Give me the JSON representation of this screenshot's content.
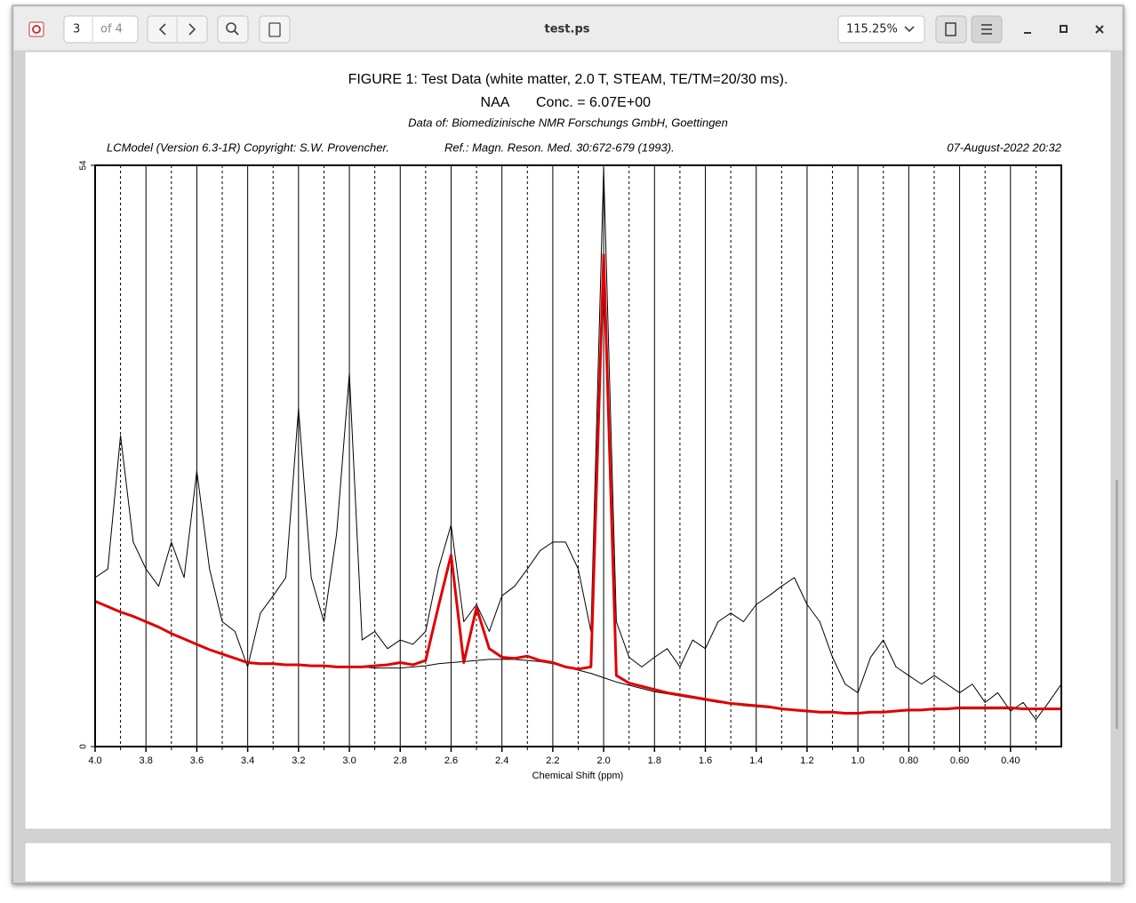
{
  "viewer": {
    "page_number": "3",
    "page_count": "of 4",
    "file_name": "test.ps",
    "zoom": "115.25%"
  },
  "chart_data": {
    "type": "line",
    "title": "FIGURE 1:  Test Data (white matter, 2.0 T, STEAM, TE/TM=20/30 ms).",
    "metabolite": "NAA",
    "concentration": "Conc. = 6.07E+00",
    "data_source": "Data of: Biomedizinische NMR Forschungs GmbH, Goettingen",
    "program": "LCModel (Version 6.3-1R) Copyright: S.W. Provencher.",
    "reference": "Ref.: Magn. Reson. Med. 30:672-679 (1993).",
    "date": "07-August-2022  20:32",
    "xlabel": "Chemical Shift (ppm)",
    "xlim": [
      4.0,
      0.2
    ],
    "ylim": [
      0,
      54
    ],
    "xticks": [
      {
        "value": 4.0,
        "label": "4.0"
      },
      3.8,
      3.6,
      3.4,
      3.2,
      {
        "value": 3.0,
        "label": "3.0"
      },
      2.8,
      2.6,
      2.4,
      2.2,
      {
        "value": 2.0,
        "label": "2.0"
      },
      1.8,
      1.6,
      1.4,
      1.2,
      {
        "value": 1.0,
        "label": "1.0"
      },
      {
        "value": 0.8,
        "label": "0.80"
      },
      {
        "value": 0.6,
        "label": "0.60"
      },
      {
        "value": 0.4,
        "label": "0.40"
      }
    ],
    "minor_xticks": [
      3.9,
      3.7,
      3.5,
      3.3,
      3.1,
      2.9,
      2.7,
      2.5,
      2.3,
      2.1,
      1.9,
      1.7,
      1.5,
      1.3,
      1.1,
      0.9,
      0.7,
      0.5,
      0.3
    ],
    "yticks": [
      0,
      54
    ],
    "grid": true,
    "x": [
      4.0,
      3.95,
      3.9,
      3.85,
      3.8,
      3.75,
      3.7,
      3.65,
      3.6,
      3.55,
      3.5,
      3.45,
      3.4,
      3.35,
      3.3,
      3.25,
      3.2,
      3.15,
      3.1,
      3.05,
      3.0,
      2.95,
      2.9,
      2.85,
      2.8,
      2.75,
      2.7,
      2.65,
      2.6,
      2.55,
      2.5,
      2.45,
      2.4,
      2.35,
      2.3,
      2.25,
      2.2,
      2.15,
      2.1,
      2.05,
      2.0,
      1.95,
      1.9,
      1.85,
      1.8,
      1.75,
      1.7,
      1.65,
      1.6,
      1.55,
      1.5,
      1.45,
      1.4,
      1.35,
      1.3,
      1.25,
      1.2,
      1.15,
      1.1,
      1.05,
      1.0,
      0.95,
      0.9,
      0.85,
      0.8,
      0.75,
      0.7,
      0.65,
      0.6,
      0.55,
      0.5,
      0.45,
      0.4,
      0.35,
      0.3,
      0.25,
      0.2
    ],
    "series": [
      {
        "color": "#000000",
        "width": 1,
        "values": [
          15.7,
          16.5,
          28.9,
          19,
          16.5,
          14.9,
          19,
          15.7,
          25.6,
          16.5,
          11.6,
          10.7,
          7.4,
          12.4,
          14,
          15.7,
          31.4,
          15.7,
          11.6,
          19.8,
          34.7,
          9.9,
          10.7,
          9.1,
          9.9,
          9.5,
          10.7,
          16.5,
          20.6,
          11.6,
          13.2,
          10.7,
          14,
          14.9,
          16.5,
          18.2,
          19,
          19,
          16.5,
          10.7,
          53.7,
          11.6,
          8.3,
          7.4,
          8.3,
          9.1,
          7.4,
          9.9,
          9.1,
          11.6,
          12.4,
          11.6,
          13.2,
          14,
          14.9,
          15.7,
          13.2,
          11.6,
          8.3,
          5.8,
          5,
          8.3,
          9.9,
          7.4,
          6.6,
          5.8,
          6.6,
          5.8,
          5,
          5.8,
          4.1,
          5,
          3.3,
          4.1,
          2.5,
          4.1,
          5.8
        ]
      },
      {
        "color": "#000000",
        "width": 1,
        "values": [
          13.5,
          13,
          12.5,
          12.1,
          11.6,
          11.1,
          10.5,
          10,
          9.5,
          9,
          8.6,
          8.2,
          7.8,
          7.7,
          7.7,
          7.6,
          7.6,
          7.5,
          7.5,
          7.4,
          7.4,
          7.4,
          7.3,
          7.3,
          7.3,
          7.4,
          7.5,
          7.7,
          7.8,
          7.9,
          8,
          8.1,
          8.1,
          8.1,
          8,
          7.9,
          7.7,
          7.4,
          7.1,
          6.8,
          6.4,
          6,
          5.7,
          5.4,
          5.1,
          4.9,
          4.7,
          4.5,
          4.3,
          4.1,
          4,
          3.8,
          3.7,
          3.6,
          3.5,
          3.4,
          3.3,
          3.2,
          3.2,
          3.1,
          3.1,
          3.2,
          3.2,
          3.3,
          3.3,
          3.4,
          3.4,
          3.5,
          3.5,
          3.5,
          3.5,
          3.5,
          3.5,
          3.5,
          3.5,
          3.5,
          3.5
        ]
      },
      {
        "color": "#e00000",
        "width": 3,
        "values": [
          13.5,
          13,
          12.5,
          12.1,
          11.6,
          11.1,
          10.5,
          10,
          9.5,
          9,
          8.6,
          8.2,
          7.8,
          7.7,
          7.7,
          7.6,
          7.6,
          7.5,
          7.5,
          7.4,
          7.4,
          7.4,
          7.5,
          7.6,
          7.8,
          7.6,
          8,
          13,
          17.8,
          7.8,
          12.9,
          9.1,
          8.3,
          8.2,
          8.4,
          8,
          7.8,
          7.4,
          7.2,
          7.4,
          45.7,
          6.6,
          5.9,
          5.6,
          5.3,
          5,
          4.8,
          4.6,
          4.4,
          4.2,
          4,
          3.9,
          3.8,
          3.7,
          3.5,
          3.4,
          3.3,
          3.2,
          3.2,
          3.1,
          3.1,
          3.2,
          3.2,
          3.3,
          3.4,
          3.4,
          3.5,
          3.5,
          3.6,
          3.6,
          3.6,
          3.6,
          3.6,
          3.5,
          3.5,
          3.5,
          3.5
        ]
      }
    ]
  }
}
